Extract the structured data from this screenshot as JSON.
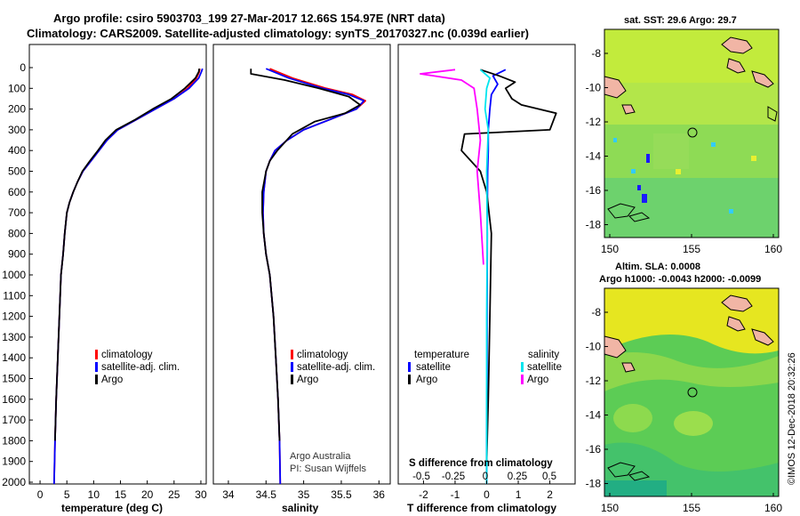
{
  "title_line1": "Argo profile: csiro 5903703_199 27-Mar-2017 12.66S 154.97E (NRT data)",
  "title_line2": "Climatology: CARS2009. Satellite-adjusted climatology: synTS_20170327.nc (0.039d earlier)",
  "depth_ticks": [
    "0",
    "100",
    "200",
    "300",
    "400",
    "500",
    "600",
    "700",
    "800",
    "900",
    "1000",
    "1100",
    "1200",
    "1300",
    "1400",
    "1500",
    "1600",
    "1700",
    "1800",
    "1900",
    "2000"
  ],
  "colors": {
    "climatology": "#ff0000",
    "satellite": "#0000ff",
    "argo": "#000000",
    "s_satellite": "#00e5ee",
    "s_argo": "#ff00ff"
  },
  "panels": {
    "temperature": {
      "xlabel": "temperature (deg C)",
      "xticks": [
        "0",
        "5",
        "10",
        "15",
        "20",
        "25",
        "30"
      ],
      "legend": [
        "climatology",
        "satellite-adj. clim.",
        "Argo"
      ]
    },
    "salinity": {
      "xlabel": "salinity",
      "xticks": [
        "34",
        "34.5",
        "35",
        "35.5",
        "36"
      ],
      "legend": [
        "climatology",
        "satellite-adj. clim.",
        "Argo"
      ],
      "credit1": "Argo Australia",
      "credit2": "PI: Susan Wijffels"
    },
    "difference": {
      "xlabel": "T difference from climatology",
      "xticks": [
        "-2",
        "-1",
        "0",
        "1",
        "2"
      ],
      "s_label": "S difference from climatology",
      "s_ticks": [
        "-0.5",
        "-0.25",
        "0",
        "0.25",
        "0.5"
      ],
      "legend_t_head": "temperature",
      "legend_s_head": "salinity",
      "legend_t": [
        "satellite",
        "Argo"
      ],
      "legend_s": [
        "satellite",
        "Argo"
      ]
    }
  },
  "map_top": {
    "title": "sat. SST: 29.6 Argo: 29.7",
    "yticks": [
      "-8",
      "-10",
      "-12",
      "-14",
      "-16",
      "-18"
    ],
    "xticks": [
      "150",
      "155",
      "160"
    ]
  },
  "map_bottom": {
    "title_line1": "Altim. SLA: 0.0008",
    "title_line2": "Argo h1000: -0.0043 h2000: -0.0099",
    "yticks": [
      "-8",
      "-10",
      "-12",
      "-14",
      "-16",
      "-18"
    ],
    "xticks": [
      "150",
      "155",
      "160"
    ]
  },
  "side_label": "©IMOS 12-Dec-2018 20:32:26",
  "chart_data": [
    {
      "type": "line",
      "xlabel": "temperature (deg C)",
      "ylabel": "",
      "xlim": [
        -2,
        31
      ],
      "ylim": [
        2050,
        0
      ],
      "series": [
        {
          "name": "climatology",
          "color": "#ff0000",
          "x": [
            29.8,
            29.7,
            29.2,
            27.5,
            25,
            21.5,
            18,
            14.5,
            12.5,
            11,
            9.5,
            8,
            7,
            6.2,
            5.5,
            5,
            4.6,
            4.3,
            3.9,
            3.6,
            3.3,
            3.0,
            2.8,
            2.6
          ],
          "y": [
            5,
            20,
            50,
            100,
            150,
            200,
            250,
            300,
            350,
            400,
            450,
            500,
            550,
            600,
            650,
            700,
            800,
            900,
            1000,
            1200,
            1400,
            1600,
            1800,
            2040
          ]
        },
        {
          "name": "satellite-adj. clim.",
          "color": "#0000ff",
          "x": [
            30.3,
            30.1,
            29.6,
            27.8,
            25,
            21.5,
            18,
            14.5,
            12.5,
            11,
            9.5,
            8,
            7,
            6.2,
            5.5,
            5,
            4.6,
            4.3,
            3.9,
            3.6,
            3.3,
            3.0,
            2.8,
            2.6
          ],
          "y": [
            5,
            20,
            50,
            100,
            150,
            200,
            250,
            300,
            350,
            400,
            450,
            500,
            550,
            600,
            650,
            700,
            800,
            900,
            1000,
            1200,
            1400,
            1600,
            1800,
            2040
          ]
        },
        {
          "name": "Argo",
          "color": "#000000",
          "x": [
            29.7,
            29.6,
            29.0,
            27.0,
            24.5,
            21.0,
            17.8,
            14.2,
            12.2,
            10.8,
            9.3,
            7.9,
            7.0,
            6.2,
            5.5,
            5.0,
            4.6,
            4.3,
            3.9,
            3.6,
            3.3,
            3.0,
            2.8
          ],
          "y": [
            5,
            20,
            50,
            100,
            150,
            200,
            250,
            300,
            350,
            400,
            450,
            500,
            550,
            600,
            650,
            700,
            800,
            900,
            1000,
            1200,
            1400,
            1600,
            1800
          ]
        }
      ]
    },
    {
      "type": "line",
      "xlabel": "salinity",
      "ylabel": "",
      "xlim": [
        33.8,
        36.15
      ],
      "ylim": [
        2050,
        0
      ],
      "series": [
        {
          "name": "climatology",
          "color": "#ff0000",
          "x": [
            34.55,
            34.85,
            35.3,
            35.65,
            35.82,
            35.7,
            35.35,
            35.0,
            34.78,
            34.62,
            34.55,
            34.5,
            34.47,
            34.46,
            34.47,
            34.5,
            34.55,
            34.6,
            34.63,
            34.66,
            34.68,
            34.69
          ],
          "y": [
            5,
            50,
            100,
            130,
            160,
            200,
            250,
            300,
            350,
            400,
            450,
            500,
            600,
            700,
            800,
            900,
            1000,
            1200,
            1400,
            1600,
            1800,
            2040
          ]
        },
        {
          "name": "satellite-adj. clim.",
          "color": "#0000ff",
          "x": [
            34.5,
            34.8,
            35.25,
            35.6,
            35.8,
            35.7,
            35.35,
            35.0,
            34.78,
            34.62,
            34.55,
            34.5,
            34.47,
            34.46,
            34.47,
            34.5,
            34.55,
            34.6,
            34.63,
            34.66,
            34.68,
            34.69
          ],
          "y": [
            5,
            50,
            100,
            130,
            160,
            200,
            250,
            300,
            350,
            400,
            450,
            500,
            600,
            700,
            800,
            900,
            1000,
            1200,
            1400,
            1600,
            1800,
            2040
          ]
        },
        {
          "name": "Argo",
          "color": "#000000",
          "x": [
            34.3,
            34.3,
            34.75,
            35.2,
            35.6,
            35.75,
            35.55,
            35.15,
            34.85,
            34.65,
            34.55,
            34.5,
            34.45,
            34.45,
            34.47,
            34.5,
            34.55,
            34.6,
            34.63,
            34.66,
            34.68
          ],
          "y": [
            5,
            30,
            60,
            100,
            140,
            180,
            220,
            260,
            320,
            400,
            450,
            500,
            600,
            700,
            800,
            900,
            1000,
            1200,
            1400,
            1600,
            1800
          ]
        }
      ]
    },
    {
      "type": "line",
      "xlabel": "T difference from climatology",
      "ylabel": "",
      "xlim": [
        -2.8,
        2.8
      ],
      "ylim": [
        2050,
        0
      ],
      "series": [
        {
          "name": "temperature satellite",
          "color": "#0000ff",
          "x": [
            0.6,
            0.2,
            0.35,
            0.15,
            0.1,
            0.05,
            0.05,
            0.03,
            0.02,
            0.02,
            0.01,
            0.01,
            0.0,
            0.0
          ],
          "y": [
            10,
            40,
            80,
            130,
            200,
            300,
            400,
            500,
            700,
            900,
            1200,
            1500,
            1800,
            2040
          ]
        },
        {
          "name": "temperature Argo",
          "color": "#000000",
          "x": [
            -0.2,
            0.4,
            0.9,
            0.6,
            0.8,
            1.1,
            2.2,
            2.0,
            -0.7,
            -0.8,
            -0.2,
            0.0,
            0.15,
            0.1,
            0.05,
            0.0
          ],
          "y": [
            10,
            40,
            70,
            100,
            150,
            180,
            220,
            300,
            320,
            400,
            500,
            600,
            800,
            1200,
            1600,
            1900
          ]
        },
        {
          "name": "salinity satellite",
          "color": "#00e5ee",
          "x": [
            -0.2,
            0.1,
            0.0,
            -0.05,
            0.05,
            0.0,
            0.02,
            0.0,
            0.0
          ],
          "y": [
            10,
            50,
            100,
            200,
            300,
            500,
            800,
            1200,
            2040
          ]
        },
        {
          "name": "salinity Argo",
          "color": "#ff00ff",
          "x": [
            -1.0,
            -2.1,
            -0.8,
            -0.4,
            -0.3,
            -0.2,
            -0.3,
            -0.2,
            -0.1
          ],
          "y": [
            10,
            30,
            60,
            100,
            200,
            350,
            500,
            700,
            950
          ]
        }
      ]
    }
  ]
}
